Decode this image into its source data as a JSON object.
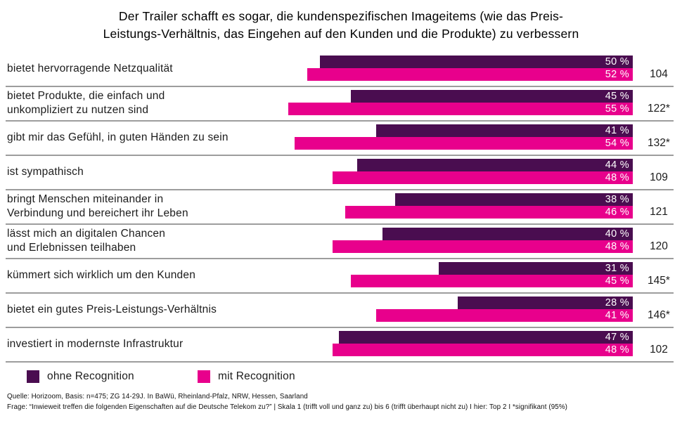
{
  "title": {
    "line1": "Der Trailer schafft es sogar, die kundenspezifischen Imageitems (wie das Preis-",
    "line2": "Leistungs-Verhältnis, das Eingehen auf den Kunden und die Produkte) zu verbessern",
    "full": "Der Trailer schafft es sogar, die kundenspezifischen Imageitems (wie das Preis-Leistungs-Verhältnis, das Eingehen auf den Kunden und die Produkte) zu verbessern"
  },
  "colors": {
    "ohne": "#4A0D50",
    "mit": "#E8008C",
    "separator": "#9d9d9d"
  },
  "legend": [
    {
      "label": "ohne Recognition",
      "color_key": "ohne"
    },
    {
      "label": "mit Recognition",
      "color_key": "mit"
    }
  ],
  "footer": {
    "line1": "Quelle: Horizoom, Basis: n=475; ZG 14-29J. In BaWü, Rheinland-Pfalz, NRW, Hessen, Saarland",
    "line2": "Frage: “Inwieweit treffen die folgenden Eigenschaften auf die Deutsche Telekom zu?” | Skala 1 (trifft voll und ganz zu) bis 6 (trifft überhaupt nicht zu) I hier: Top 2 I *signifikant (95%)"
  },
  "chart_data": {
    "type": "bar",
    "orientation": "horizontal",
    "bar_alignment": "right-aligned",
    "unit": "%",
    "series_names": [
      "ohne Recognition",
      "mit Recognition"
    ],
    "categories": [
      "bietet hervorragende Netzqualität",
      "bietet Produkte, die einfach und unkompliziert zu nutzen sind",
      "gibt mir das Gefühl, in guten Händen zu sein",
      "ist sympathisch",
      "bringt Menschen miteinander in Verbindung und bereichert ihr Leben",
      "lässt mich an digitalen Chancen und Erlebnissen teilhaben",
      "kümmert sich wirklich um den Kunden",
      "bietet ein gutes Preis-Leistungs-Verhältnis",
      "investiert in modernste Infrastruktur"
    ],
    "rows": [
      {
        "label_lines": [
          "bietet hervorragende Netzqualität"
        ],
        "ohne": 50,
        "mit": 52,
        "ohne_label": "50 %",
        "mit_label": "52 %",
        "index": "104"
      },
      {
        "label_lines": [
          "bietet Produkte, die einfach und",
          "unkompliziert zu nutzen sind"
        ],
        "ohne": 45,
        "mit": 55,
        "ohne_label": "45 %",
        "mit_label": "55 %",
        "index": "122*"
      },
      {
        "label_lines": [
          "gibt mir das Gefühl, in guten Händen zu sein"
        ],
        "ohne": 41,
        "mit": 54,
        "ohne_label": "41 %",
        "mit_label": "54 %",
        "index": "132*"
      },
      {
        "label_lines": [
          "ist sympathisch"
        ],
        "ohne": 44,
        "mit": 48,
        "ohne_label": "44 %",
        "mit_label": "48 %",
        "index": "109"
      },
      {
        "label_lines": [
          "bringt Menschen miteinander in",
          "Verbindung und bereichert ihr Leben"
        ],
        "ohne": 38,
        "mit": 46,
        "ohne_label": "38 %",
        "mit_label": "46 %",
        "index": "121"
      },
      {
        "label_lines": [
          "lässt mich an digitalen Chancen",
          "und Erlebnissen teilhaben"
        ],
        "ohne": 40,
        "mit": 48,
        "ohne_label": "40 %",
        "mit_label": "48 %",
        "index": "120"
      },
      {
        "label_lines": [
          "kümmert sich wirklich um den Kunden"
        ],
        "ohne": 31,
        "mit": 45,
        "ohne_label": "31 %",
        "mit_label": "45 %",
        "index": "145*"
      },
      {
        "label_lines": [
          "bietet ein gutes Preis-Leistungs-Verhältnis"
        ],
        "ohne": 28,
        "mit": 41,
        "ohne_label": "28 %",
        "mit_label": "41 %",
        "index": "146*"
      },
      {
        "label_lines": [
          "investiert in modernste Infrastruktur"
        ],
        "ohne": 47,
        "mit": 48,
        "ohne_label": "47 %",
        "mit_label": "48 %",
        "index": "102"
      }
    ],
    "xlim": [
      0,
      100
    ],
    "grid": false,
    "legend_position": "bottom-left"
  }
}
